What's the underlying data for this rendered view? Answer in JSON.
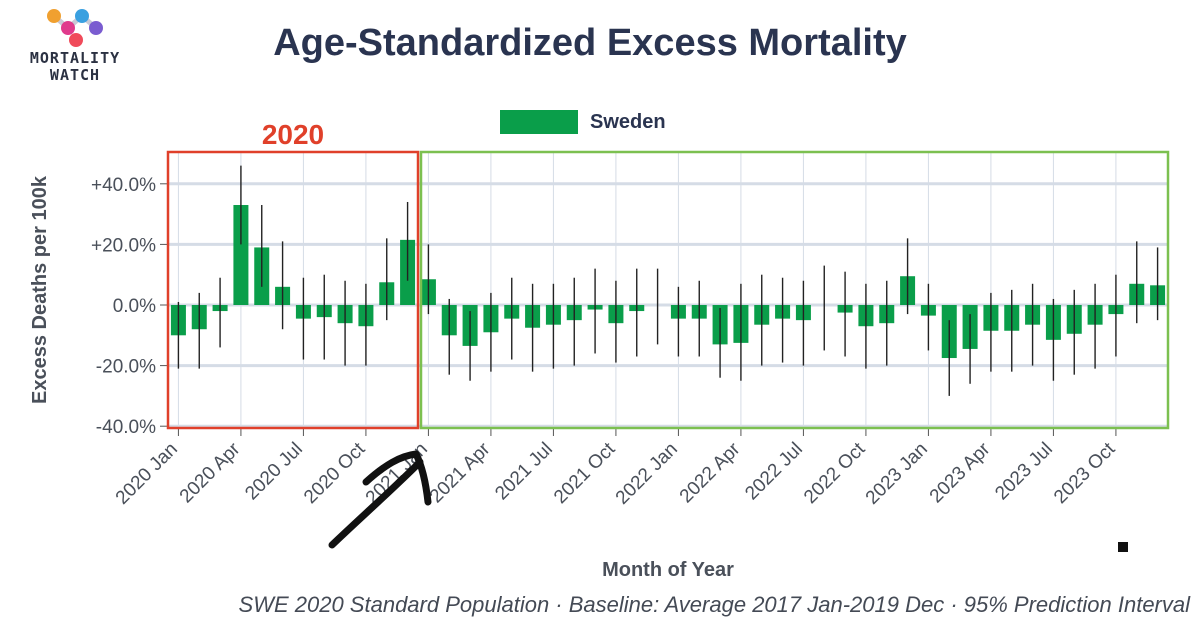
{
  "branding": {
    "logo_line1": "MORTALITY",
    "logo_line2": "WATCH",
    "logo_colors": [
      "#f0a030",
      "#e03a8c",
      "#3aa0e0",
      "#7a5cd0",
      "#f04a5a"
    ]
  },
  "colors": {
    "bar": "#0a9e4a",
    "highlight_2020": "#e0402a",
    "highlight_rest": "#7cc050",
    "annotation": "#111111",
    "grid": "#d5dce6"
  },
  "annotations": {
    "box_2020_label": "2020",
    "arrow": "hand-drawn arrow pointing to 2021 Jan"
  },
  "chart_data": {
    "type": "bar",
    "title": "Age-Standardized Excess Mortality",
    "xlabel": "Month of Year",
    "ylabel": "Excess Deaths per 100k",
    "caption": "SWE 2020 Standard Population · Baseline: Average 2017 Jan-2019 Dec · 95% Prediction Interval",
    "legend": "top-center",
    "grid": true,
    "ylim": [
      -40,
      50
    ],
    "yticks": [
      40,
      20,
      0,
      -20,
      -40
    ],
    "ytick_labels": [
      "+40.0%",
      "+20.0%",
      "0.0%",
      "-20.0%",
      "-40.0%"
    ],
    "xtick_labels": [
      "2020 Jan",
      "2020 Apr",
      "2020 Jul",
      "2020 Oct",
      "2021 Jan",
      "2021 Apr",
      "2021 Jul",
      "2021 Oct",
      "2022 Jan",
      "2022 Apr",
      "2022 Jul",
      "2022 Oct",
      "2023 Jan",
      "2023 Apr",
      "2023 Jul",
      "2023 Oct"
    ],
    "categories": [
      "2020 Jan",
      "2020 Feb",
      "2020 Mar",
      "2020 Apr",
      "2020 May",
      "2020 Jun",
      "2020 Jul",
      "2020 Aug",
      "2020 Sep",
      "2020 Oct",
      "2020 Nov",
      "2020 Dec",
      "2021 Jan",
      "2021 Feb",
      "2021 Mar",
      "2021 Apr",
      "2021 May",
      "2021 Jun",
      "2021 Jul",
      "2021 Aug",
      "2021 Sep",
      "2021 Oct",
      "2021 Nov",
      "2021 Dec",
      "2022 Jan",
      "2022 Feb",
      "2022 Mar",
      "2022 Apr",
      "2022 May",
      "2022 Jun",
      "2022 Jul",
      "2022 Aug",
      "2022 Sep",
      "2022 Oct",
      "2022 Nov",
      "2022 Dec",
      "2023 Jan",
      "2023 Feb",
      "2023 Mar",
      "2023 Apr",
      "2023 May",
      "2023 Jun",
      "2023 Jul",
      "2023 Aug",
      "2023 Sep",
      "2023 Oct",
      "2023 Nov",
      "2023 Dec"
    ],
    "series": [
      {
        "name": "Sweden",
        "values": [
          -10,
          -8,
          -2,
          33,
          19,
          6,
          -4.5,
          -4,
          -6,
          -7,
          7.5,
          21.5,
          8.5,
          -10,
          -13.5,
          -9,
          -4.5,
          -7.5,
          -6.5,
          -5,
          -1.5,
          -6,
          -2,
          0,
          -4.5,
          -4.5,
          -13,
          -12.5,
          -6.5,
          -4.5,
          -5,
          0,
          -2.5,
          -7,
          -6,
          9.5,
          -3.5,
          -17.5,
          -14.5,
          -8.5,
          -8.5,
          -6.5,
          -11.5,
          -9.5,
          -6.5,
          -3,
          7,
          6.5
        ],
        "lower": [
          -21,
          -21,
          -14,
          20,
          6,
          -8,
          -18,
          -18,
          -20,
          -20,
          -5,
          8,
          -3,
          -23,
          -25,
          -22,
          -18,
          -22,
          -21,
          -20,
          -16,
          -19,
          -17,
          -13,
          -17,
          -17,
          -24,
          -25,
          -20,
          -19,
          -20,
          -15,
          -17,
          -21,
          -20,
          -3,
          -15,
          -30,
          -26,
          -22,
          -22,
          -20,
          -25,
          -23,
          -21,
          -17,
          -6,
          -5
        ],
        "upper": [
          1,
          4,
          9,
          46,
          33,
          21,
          9,
          10,
          8,
          7,
          22,
          34,
          20,
          2,
          -2,
          4,
          9,
          7,
          7,
          9,
          12,
          8,
          12,
          12,
          6,
          8,
          -1,
          7,
          10,
          9,
          8,
          13,
          11,
          7,
          8,
          22,
          7,
          -5,
          -3,
          4,
          5,
          7,
          2,
          5,
          7,
          10,
          21,
          19
        ]
      }
    ]
  }
}
